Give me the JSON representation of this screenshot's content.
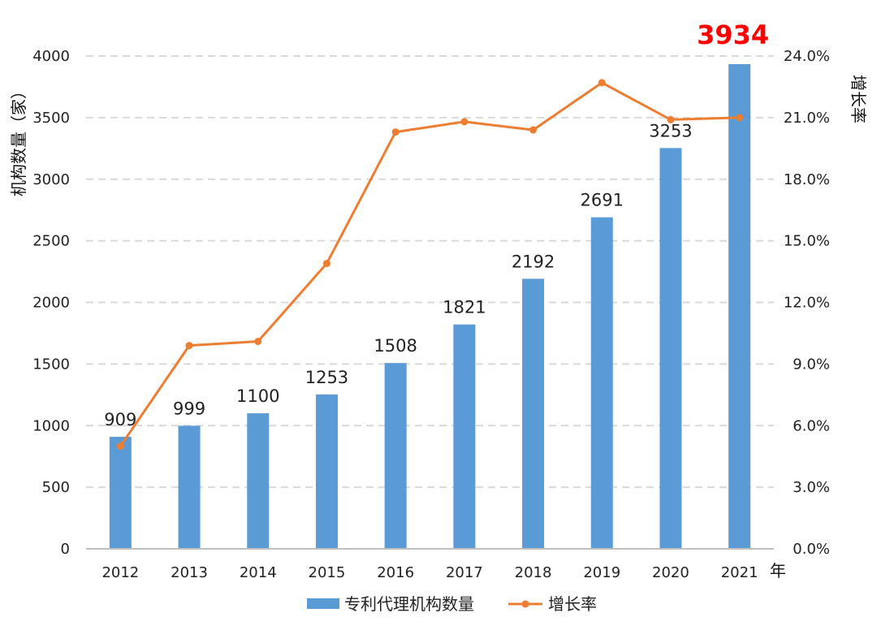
{
  "chart_data": {
    "type": "bar",
    "categories": [
      "2012",
      "2013",
      "2014",
      "2015",
      "2016",
      "2017",
      "2018",
      "2019",
      "2020",
      "2021"
    ],
    "series": [
      {
        "name": "专利代理机构数量",
        "type": "bar",
        "axis": "left",
        "values": [
          909,
          999,
          1100,
          1253,
          1508,
          1821,
          2192,
          2691,
          3253,
          3934
        ]
      },
      {
        "name": "增长率",
        "type": "line",
        "axis": "right",
        "values": [
          5.0,
          9.9,
          10.1,
          13.9,
          20.3,
          20.8,
          20.4,
          22.7,
          20.9,
          21.0
        ]
      }
    ],
    "data_labels": [
      "909",
      "999",
      "1100",
      "1253",
      "1508",
      "1821",
      "2192",
      "2691",
      "3253",
      ""
    ],
    "highlight_label": "3934",
    "xlabel": "年",
    "ylabel": "机构数量（家）",
    "y2label": "增长率",
    "ylim": [
      0,
      4000
    ],
    "y2lim": [
      0,
      24
    ],
    "yticks": [
      "0",
      "500",
      "1000",
      "1500",
      "2000",
      "2500",
      "3000",
      "3500",
      "4000"
    ],
    "y2ticks": [
      "0.0%",
      "3.0%",
      "6.0%",
      "9.0%",
      "12.0%",
      "15.0%",
      "18.0%",
      "21.0%",
      "24.0%"
    ],
    "grid": true,
    "legend_position": "bottom",
    "colors": {
      "bar": "#5b9bd5",
      "line": "#ed7d31",
      "highlight": "#ff0000",
      "grid": "#d9d9d9"
    }
  }
}
